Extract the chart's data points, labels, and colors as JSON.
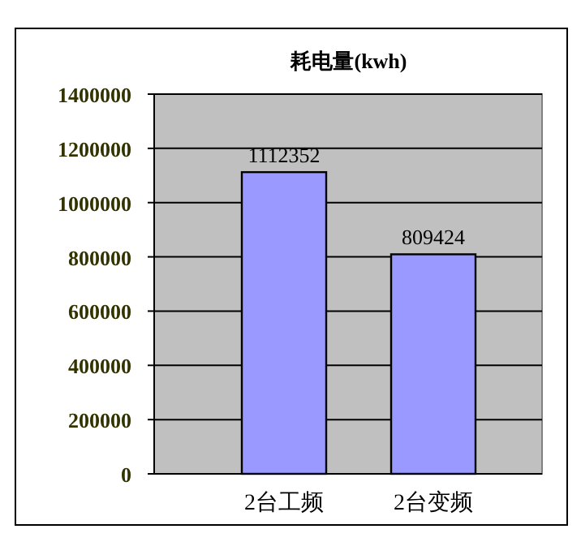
{
  "chart_data": {
    "type": "bar",
    "title": "耗电量(kwh)",
    "categories": [
      "2台工频",
      "2台变频"
    ],
    "values": [
      1112352,
      809424
    ],
    "color": "#9999ff",
    "ylim": [
      0,
      1400000
    ],
    "yticks": [
      0,
      200000,
      400000,
      600000,
      800000,
      1000000,
      1200000,
      1400000
    ],
    "grid": "y",
    "data_labels": true
  }
}
